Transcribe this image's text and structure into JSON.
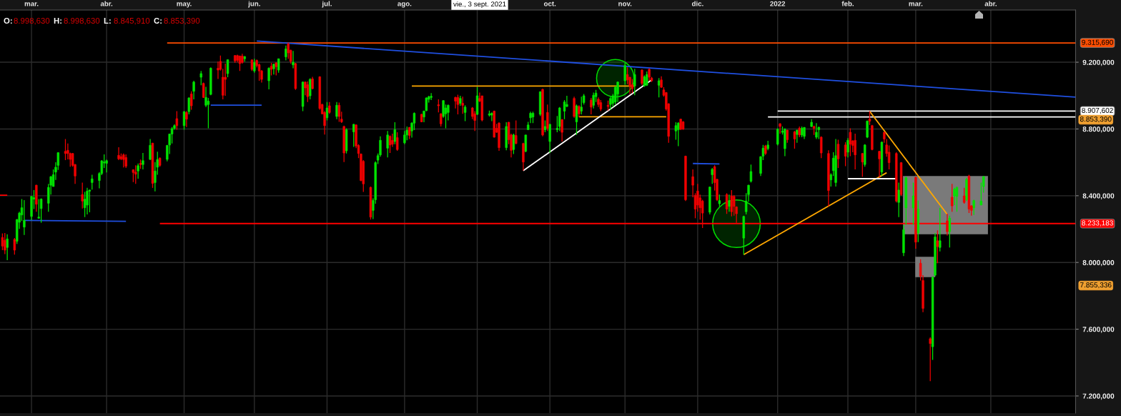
{
  "chart_data": {
    "type": "candlestick",
    "xlim": [
      "2021-02-16",
      "2022-05-06"
    ],
    "ylim": [
      7097,
      9513
    ],
    "xticks": [
      {
        "value": "2021-03-01",
        "label": "mar."
      },
      {
        "value": "2021-04-01",
        "label": "abr."
      },
      {
        "value": "2021-05-03",
        "label": "may."
      },
      {
        "value": "2021-06-01",
        "label": "jun."
      },
      {
        "value": "2021-07-01",
        "label": "jul."
      },
      {
        "value": "2021-08-02",
        "label": "ago."
      },
      {
        "value": "2021-09-01",
        "label": null
      },
      {
        "value": "2021-10-01",
        "label": "oct."
      },
      {
        "value": "2021-11-01",
        "label": "nov."
      },
      {
        "value": "2021-12-01",
        "label": "dic."
      },
      {
        "value": "2022-01-03",
        "label": "2022"
      },
      {
        "value": "2022-02-01",
        "label": "feb."
      },
      {
        "value": "2022-03-01",
        "label": "mar."
      },
      {
        "value": "2022-04-01",
        "label": "abr."
      }
    ],
    "yticks": [
      {
        "value": 7200,
        "label": "7.200,000"
      },
      {
        "value": 7600,
        "label": "7.600,000"
      },
      {
        "value": 8000,
        "label": "8.000,000"
      },
      {
        "value": 8400,
        "label": "8.400,000"
      },
      {
        "value": 8800,
        "label": "8.800,000"
      },
      {
        "value": 9200,
        "label": "9.200,000"
      }
    ],
    "grid": true,
    "annotations": [
      "O: 8.998,630",
      "H: 8.998,630",
      "L: 8.845,910",
      "C: 8.853,390",
      "vie., 3 sept. 2021",
      "8.853,390",
      "7.855,336"
    ],
    "series": [
      {
        "type": "bubble",
        "color": "#00dd00",
        "x": [
          "2021-10-28",
          "2021-12-17"
        ],
        "values": [
          9104,
          8232
        ],
        "sizes": [
          0.62,
          1
        ]
      },
      {
        "type": "line",
        "color": "#ff4d00",
        "x": [
          "2021-04-26",
          "2022-05-06"
        ],
        "values": [
          9315.69,
          9315.69
        ],
        "value_labels": [
          null,
          "9.315,690"
        ]
      },
      {
        "type": "line",
        "color": "#ff0000",
        "x": [
          "2021-04-23",
          "2022-05-06"
        ],
        "values": [
          8233.183,
          8233.183
        ],
        "value_labels": [
          null,
          "8.233,183"
        ]
      },
      {
        "type": "line",
        "color": "#ffffff",
        "x": [
          "2022-01-03",
          "2022-05-06"
        ],
        "values": [
          8907.602,
          8907.602
        ],
        "value_labels": [
          null,
          "8.907,602"
        ]
      },
      {
        "type": "line",
        "color": "#ffffff",
        "x": [
          "2021-12-30",
          "2022-05-06"
        ],
        "values": [
          8872,
          8872
        ]
      },
      {
        "type": "line",
        "color": "#1f4fe0",
        "x": [
          "2021-06-02",
          "2022-05-06"
        ],
        "values": [
          9327,
          8991
        ]
      },
      {
        "type": "line",
        "color": "#ffa800",
        "x": [
          "2021-08-05",
          "2021-11-05"
        ],
        "values": [
          9057,
          9057
        ]
      },
      {
        "type": "line",
        "color": "#ffa800",
        "x": [
          "2021-10-13",
          "2021-11-18"
        ],
        "values": [
          8873,
          8873
        ]
      },
      {
        "type": "line",
        "color": "#ffffff",
        "x": [
          "2021-09-20",
          "2021-11-12"
        ],
        "values": [
          8550,
          9094
        ]
      },
      {
        "type": "line",
        "color": "#1f4fe0",
        "x": [
          "2021-02-26",
          "2021-04-09"
        ],
        "values": [
          8252,
          8247
        ]
      },
      {
        "type": "line",
        "color": "#1f4fe0",
        "x": [
          "2021-05-14",
          "2021-06-04"
        ],
        "values": [
          8943,
          8943
        ]
      },
      {
        "type": "line",
        "color": "#1f4fe0",
        "x": [
          "2021-11-29",
          "2021-12-10"
        ],
        "values": [
          8593,
          8590
        ]
      },
      {
        "type": "line",
        "color": "#ffa800",
        "x": [
          "2021-12-20",
          "2022-02-17"
        ],
        "values": [
          8047,
          8538
        ]
      },
      {
        "type": "line",
        "color": "#ffffff",
        "x": [
          "2022-02-01",
          "2022-02-21"
        ],
        "values": [
          8502,
          8502
        ]
      },
      {
        "type": "line",
        "color": "#ffa800",
        "x": [
          "2022-02-10",
          "2022-03-14"
        ],
        "values": [
          8906,
          8288
        ]
      },
      {
        "type": "line",
        "color": "#ff0000",
        "x": [
          "2021-02-16",
          "2021-02-19"
        ],
        "values": [
          8403,
          8403
        ]
      },
      {
        "color": "#00e400",
        "x": [
          "2021-02-19",
          "2021-02-23",
          "2021-02-24",
          "2021-02-25",
          "2021-02-26",
          "2021-03-01",
          "2021-03-02",
          "2021-03-04",
          "2021-03-05",
          "2021-03-08",
          "2021-03-09",
          "2021-03-10",
          "2021-03-11",
          "2021-03-12",
          "2021-03-23",
          "2021-03-24",
          "2021-03-25",
          "2021-03-26",
          "2021-03-29",
          "2021-03-30",
          "2021-03-31",
          "2021-04-01",
          "2021-04-14",
          "2021-04-16",
          "2021-04-19",
          "2021-04-21",
          "2021-04-22",
          "2021-04-26",
          "2021-04-27",
          "2021-04-28",
          "2021-04-29",
          "2021-05-03",
          "2021-05-05",
          "2021-05-07",
          "2021-05-10",
          "2021-05-12",
          "2021-05-13",
          "2021-05-14",
          "2021-05-21",
          "2021-05-28",
          "2021-06-01",
          "2021-06-07",
          "2021-06-09",
          "2021-06-11",
          "2021-06-14",
          "2021-06-17",
          "2021-06-21",
          "2021-06-24",
          "2021-07-01",
          "2021-07-05",
          "2021-07-09",
          "2021-07-12",
          "2021-07-20",
          "2021-07-21",
          "2021-07-22",
          "2021-07-23",
          "2021-07-26",
          "2021-07-29",
          "2021-08-02",
          "2021-08-03",
          "2021-08-05",
          "2021-08-06",
          "2021-08-10",
          "2021-08-11",
          "2021-08-12",
          "2021-08-13",
          "2021-08-18",
          "2021-08-19",
          "2021-08-20",
          "2021-08-25",
          "2021-08-27",
          "2021-09-01",
          "2021-09-06",
          "2021-09-07",
          "2021-09-13",
          "2021-09-16",
          "2021-09-21",
          "2021-09-22",
          "2021-09-23",
          "2021-09-24",
          "2021-09-27",
          "2021-09-29",
          "2021-10-01",
          "2021-10-04",
          "2021-10-05",
          "2021-10-07",
          "2021-10-08",
          "2021-10-12",
          "2021-10-14",
          "2021-10-15",
          "2021-10-19",
          "2021-10-20",
          "2021-10-26",
          "2021-10-27",
          "2021-10-28",
          "2021-10-29",
          "2021-11-01",
          "2021-11-05",
          "2021-11-09",
          "2021-11-10",
          "2021-11-15",
          "2021-11-22",
          "2021-11-23",
          "2021-12-06",
          "2021-12-07",
          "2021-12-10",
          "2021-12-14",
          "2021-12-20",
          "2021-12-21",
          "2021-12-22",
          "2021-12-23",
          "2021-12-27",
          "2021-12-28",
          "2021-12-30",
          "2022-01-03",
          "2022-01-05",
          "2022-01-06",
          "2022-01-11",
          "2022-01-13",
          "2022-01-14",
          "2022-01-17",
          "2022-01-19",
          "2022-01-20",
          "2022-01-25",
          "2022-01-26",
          "2022-01-27",
          "2022-02-01",
          "2022-02-08",
          "2022-02-09",
          "2022-02-15",
          "2022-02-22",
          "2022-02-24",
          "2022-02-25",
          "2022-02-28",
          "2022-03-02",
          "2022-03-08",
          "2022-03-09",
          "2022-03-11",
          "2022-03-15",
          "2022-03-17",
          "2022-03-18",
          "2022-03-22",
          "2022-03-25",
          "2022-03-28",
          "2022-03-29"
        ],
        "ohlc": [
          [
            8090,
            8169,
            8014,
            8141
          ],
          [
            8127,
            8260,
            8111,
            8257
          ],
          [
            8241,
            8304,
            8201,
            8296
          ],
          [
            8285,
            8380,
            8249,
            8328
          ],
          [
            8212,
            8374,
            8165,
            8252
          ],
          [
            8276,
            8399,
            8253,
            8396
          ],
          [
            8380,
            8434,
            8320,
            8388
          ],
          [
            8265,
            8380,
            8263,
            8272
          ],
          [
            8323,
            8384,
            8238,
            8380
          ],
          [
            8355,
            8471,
            8304,
            8450
          ],
          [
            8463,
            8518,
            8407,
            8514
          ],
          [
            8455,
            8558,
            8455,
            8526
          ],
          [
            8542,
            8601,
            8495,
            8571
          ],
          [
            8582,
            8661,
            8555,
            8658
          ],
          [
            8328,
            8423,
            8272,
            8379
          ],
          [
            8344,
            8447,
            8288,
            8428
          ],
          [
            8427,
            8436,
            8301,
            8434
          ],
          [
            8479,
            8526,
            8437,
            8501
          ],
          [
            8491,
            8542,
            8444,
            8533
          ],
          [
            8533,
            8613,
            8523,
            8609
          ],
          [
            8596,
            8648,
            8566,
            8602
          ],
          [
            8594,
            8617,
            8539,
            8610
          ],
          [
            8548,
            8593,
            8502,
            8580
          ],
          [
            8587,
            8656,
            8558,
            8610
          ],
          [
            8618,
            8740,
            8613,
            8702
          ],
          [
            8479,
            8602,
            8426,
            8548
          ],
          [
            8571,
            8664,
            8526,
            8617
          ],
          [
            8618,
            8704,
            8606,
            8701
          ],
          [
            8704,
            8772,
            8650,
            8770
          ],
          [
            8770,
            8812,
            8713,
            8802
          ],
          [
            8804,
            8828,
            8796,
            8820
          ],
          [
            8820,
            8907,
            8796,
            8904
          ],
          [
            8904,
            8989,
            8888,
            8986
          ],
          [
            9026,
            9089,
            8978,
            9081
          ],
          [
            9110,
            9148,
            9062,
            9132
          ],
          [
            8942,
            9053,
            8931,
            8989
          ],
          [
            8947,
            8986,
            8804,
            8967
          ],
          [
            9007,
            9169,
            9002,
            9164
          ],
          [
            9132,
            9216,
            9110,
            9215
          ],
          [
            9221,
            9237,
            9203,
            9234
          ],
          [
            9148,
            9221,
            9137,
            9199
          ],
          [
            9089,
            9169,
            9037,
            9164
          ],
          [
            9161,
            9192,
            9126,
            9188
          ],
          [
            9153,
            9221,
            9137,
            9221
          ],
          [
            9232,
            9300,
            9211,
            9280
          ],
          [
            9184,
            9268,
            9164,
            9200
          ],
          [
            8935,
            9085,
            8907,
            9081
          ],
          [
            8999,
            9104,
            8978,
            9097
          ],
          [
            8867,
            8962,
            8851,
            8926
          ],
          [
            8875,
            8962,
            8859,
            8942
          ],
          [
            8669,
            8804,
            8653,
            8796
          ],
          [
            8783,
            8831,
            8693,
            8828
          ],
          [
            8312,
            8384,
            8260,
            8372
          ],
          [
            8376,
            8606,
            8352,
            8598
          ],
          [
            8613,
            8653,
            8590,
            8640
          ],
          [
            8645,
            8756,
            8634,
            8732
          ],
          [
            8685,
            8788,
            8629,
            8764
          ],
          [
            8725,
            8840,
            8709,
            8796
          ],
          [
            8717,
            8788,
            8709,
            8764
          ],
          [
            8764,
            8815,
            8732,
            8793
          ],
          [
            8788,
            8840,
            8748,
            8835
          ],
          [
            8835,
            8899,
            8793,
            8894
          ],
          [
            8872,
            8910,
            8840,
            8907
          ],
          [
            8910,
            8989,
            8907,
            8986
          ],
          [
            8978,
            8999,
            8958,
            8993
          ],
          [
            8989,
            9015,
            8973,
            8996
          ],
          [
            8875,
            8973,
            8867,
            8970
          ],
          [
            8891,
            8947,
            8804,
            8926
          ],
          [
            8899,
            8947,
            8851,
            8942
          ],
          [
            8954,
            8999,
            8939,
            8983
          ],
          [
            8899,
            8942,
            8847,
            8931
          ],
          [
            8888,
            9053,
            8883,
            8999
          ],
          [
            8883,
            8910,
            8875,
            8891
          ],
          [
            8883,
            8899,
            8847,
            8894
          ],
          [
            8688,
            8840,
            8672,
            8815
          ],
          [
            8677,
            8772,
            8650,
            8764
          ],
          [
            8666,
            8764,
            8661,
            8764
          ],
          [
            8796,
            8843,
            8793,
            8824
          ],
          [
            8867,
            8904,
            8835,
            8894
          ],
          [
            8872,
            8904,
            8835,
            8894
          ],
          [
            8888,
            9026,
            8878,
            9023
          ],
          [
            8796,
            8851,
            8780,
            8815
          ],
          [
            8725,
            8831,
            8656,
            8828
          ],
          [
            8796,
            8878,
            8780,
            8804
          ],
          [
            8815,
            8931,
            8788,
            8926
          ],
          [
            8907,
            8973,
            8859,
            8962
          ],
          [
            8935,
            8999,
            8931,
            8947
          ],
          [
            8843,
            8947,
            8764,
            8939
          ],
          [
            8907,
            8994,
            8888,
            8931
          ],
          [
            8958,
            9010,
            8947,
            8999
          ],
          [
            8942,
            9018,
            8923,
            9002
          ],
          [
            8994,
            9034,
            8962,
            9015
          ],
          [
            8947,
            8994,
            8915,
            8983
          ],
          [
            8954,
            9010,
            8931,
            8999
          ],
          [
            8962,
            9058,
            8947,
            9050
          ],
          [
            9010,
            9085,
            8962,
            9081
          ],
          [
            9089,
            9196,
            9065,
            9180
          ],
          [
            9058,
            9161,
            9002,
            9126
          ],
          [
            9058,
            9121,
            9053,
            9113
          ],
          [
            9062,
            9145,
            9058,
            9126
          ],
          [
            9062,
            9105,
            8989,
            9089
          ],
          [
            8788,
            8840,
            8736,
            8820
          ],
          [
            8796,
            8840,
            8697,
            8835
          ],
          [
            8301,
            8455,
            8288,
            8452
          ],
          [
            8526,
            8566,
            8471,
            8558
          ],
          [
            8352,
            8407,
            8336,
            8371
          ],
          [
            8336,
            8407,
            8304,
            8371
          ],
          [
            8146,
            8280,
            8047,
            8276
          ],
          [
            8304,
            8415,
            8288,
            8368
          ],
          [
            8407,
            8466,
            8364,
            8463
          ],
          [
            8487,
            8587,
            8479,
            8545
          ],
          [
            8534,
            8637,
            8518,
            8634
          ],
          [
            8637,
            8704,
            8613,
            8685
          ],
          [
            8682,
            8729,
            8672,
            8704
          ],
          [
            8709,
            8804,
            8701,
            8799
          ],
          [
            8780,
            8815,
            8767,
            8788
          ],
          [
            8682,
            8804,
            8637,
            8799
          ],
          [
            8767,
            8796,
            8717,
            8793
          ],
          [
            8764,
            8815,
            8751,
            8804
          ],
          [
            8756,
            8812,
            8740,
            8809
          ],
          [
            8815,
            8859,
            8812,
            8840
          ],
          [
            8751,
            8835,
            8740,
            8780
          ],
          [
            8796,
            8815,
            8740,
            8809
          ],
          [
            8495,
            8534,
            8455,
            8526
          ],
          [
            8550,
            8661,
            8518,
            8625
          ],
          [
            8479,
            8740,
            8455,
            8640
          ],
          [
            8661,
            8745,
            8629,
            8732
          ],
          [
            8587,
            8709,
            8574,
            8704
          ],
          [
            8751,
            8851,
            8745,
            8847
          ],
          [
            8542,
            8725,
            8518,
            8721
          ],
          [
            8360,
            8479,
            8272,
            8434
          ],
          [
            8058,
            8225,
            8038,
            8196
          ],
          [
            8328,
            8514,
            8225,
            8507
          ],
          [
            8328,
            8479,
            8225,
            8399
          ],
          [
            8177,
            8371,
            8122,
            8320
          ],
          [
            7495,
            7916,
            7416,
            7911
          ],
          [
            7924,
            8177,
            7916,
            8153
          ],
          [
            8090,
            8328,
            8066,
            8130
          ],
          [
            8185,
            8280,
            8090,
            8265
          ],
          [
            8399,
            8447,
            8344,
            8439
          ],
          [
            8396,
            8455,
            8304,
            8450
          ],
          [
            8376,
            8507,
            8368,
            8498
          ],
          [
            8328,
            8376,
            8285,
            8371
          ],
          [
            8344,
            8479,
            8344,
            8368
          ],
          [
            8455,
            8518,
            8418,
            8514
          ]
        ]
      },
      {
        "color": "#f00000",
        "x": [
          "2021-02-17",
          "2021-02-18",
          "2021-02-22",
          "2021-03-03",
          "2021-03-15",
          "2021-03-16",
          "2021-03-17",
          "2021-03-18",
          "2021-03-19",
          "2021-03-22",
          "2021-04-06",
          "2021-04-07",
          "2021-04-08",
          "2021-04-09",
          "2021-04-12",
          "2021-04-13",
          "2021-04-15",
          "2021-04-20",
          "2021-04-23",
          "2021-04-30",
          "2021-05-04",
          "2021-05-06",
          "2021-05-11",
          "2021-05-17",
          "2021-05-18",
          "2021-05-19",
          "2021-05-20",
          "2021-05-24",
          "2021-05-25",
          "2021-05-26",
          "2021-05-27",
          "2021-05-31",
          "2021-06-02",
          "2021-06-03",
          "2021-06-04",
          "2021-06-08",
          "2021-06-10",
          "2021-06-15",
          "2021-06-16",
          "2021-06-18",
          "2021-06-22",
          "2021-06-23",
          "2021-06-25",
          "2021-06-28",
          "2021-06-29",
          "2021-06-30",
          "2021-07-02",
          "2021-07-06",
          "2021-07-07",
          "2021-07-08",
          "2021-07-13",
          "2021-07-14",
          "2021-07-15",
          "2021-07-16",
          "2021-07-19",
          "2021-07-27",
          "2021-07-28",
          "2021-07-30",
          "2021-08-04",
          "2021-08-09",
          "2021-08-16",
          "2021-08-17",
          "2021-08-23",
          "2021-08-24",
          "2021-08-26",
          "2021-08-30",
          "2021-08-31",
          "2021-09-02",
          "2021-09-03",
          "2021-09-08",
          "2021-09-09",
          "2021-09-10",
          "2021-09-14",
          "2021-09-15",
          "2021-09-17",
          "2021-09-20",
          "2021-09-28",
          "2021-09-30",
          "2021-10-06",
          "2021-10-11",
          "2021-10-13",
          "2021-10-18",
          "2021-10-21",
          "2021-10-22",
          "2021-10-25",
          "2021-11-02",
          "2021-11-03",
          "2021-11-04",
          "2021-11-08",
          "2021-11-11",
          "2021-11-12",
          "2021-11-16",
          "2021-11-17",
          "2021-11-18",
          "2021-11-19",
          "2021-11-24",
          "2021-11-25",
          "2021-11-26",
          "2021-11-29",
          "2021-11-30",
          "2021-12-01",
          "2021-12-02",
          "2021-12-03",
          "2021-12-08",
          "2021-12-09",
          "2021-12-13",
          "2021-12-15",
          "2021-12-16",
          "2021-12-17",
          "2021-12-29",
          "2022-01-04",
          "2022-01-07",
          "2022-01-10",
          "2022-01-12",
          "2022-01-18",
          "2022-01-21",
          "2022-01-24",
          "2022-01-28",
          "2022-01-31",
          "2022-02-02",
          "2022-02-03",
          "2022-02-04",
          "2022-02-07",
          "2022-02-10",
          "2022-02-11",
          "2022-02-14",
          "2022-02-16",
          "2022-02-17",
          "2022-02-18",
          "2022-02-21",
          "2022-02-23",
          "2022-03-01",
          "2022-03-03",
          "2022-03-04",
          "2022-03-07",
          "2022-03-10",
          "2022-03-14",
          "2022-03-16",
          "2022-03-21",
          "2022-03-23",
          "2022-03-24"
        ],
        "ohlc": [
          [
            8150,
            8174,
            8074,
            8098
          ],
          [
            8133,
            8177,
            8050,
            8074
          ],
          [
            8138,
            8146,
            8047,
            8074
          ],
          [
            8463,
            8466,
            8304,
            8349
          ],
          [
            8666,
            8740,
            8613,
            8653
          ],
          [
            8672,
            8713,
            8618,
            8653
          ],
          [
            8653,
            8658,
            8574,
            8618
          ],
          [
            8653,
            8656,
            8574,
            8582
          ],
          [
            8587,
            8590,
            8471,
            8518
          ],
          [
            8407,
            8479,
            8323,
            8368
          ],
          [
            8642,
            8690,
            8613,
            8621
          ],
          [
            8634,
            8653,
            8613,
            8621
          ],
          [
            8645,
            8653,
            8569,
            8617
          ],
          [
            8629,
            8648,
            8566,
            8577
          ],
          [
            8556,
            8558,
            8482,
            8539
          ],
          [
            8542,
            8582,
            8471,
            8529
          ],
          [
            8594,
            8617,
            8561,
            8587
          ],
          [
            8715,
            8717,
            8447,
            8474
          ],
          [
            8625,
            8629,
            8574,
            8582
          ],
          [
            8862,
            8907,
            8796,
            8820
          ],
          [
            8899,
            8907,
            8812,
            8859
          ],
          [
            9010,
            9026,
            8915,
            8939
          ],
          [
            9073,
            9078,
            8986,
            8989
          ],
          [
            9164,
            9205,
            9100,
            9153
          ],
          [
            9205,
            9240,
            9150,
            9157
          ],
          [
            9110,
            9161,
            8978,
            9002
          ],
          [
            9110,
            9192,
            8999,
            9097
          ],
          [
            9240,
            9243,
            9196,
            9208
          ],
          [
            9240,
            9245,
            9199,
            9211
          ],
          [
            9237,
            9240,
            9148,
            9192
          ],
          [
            9237,
            9251,
            9192,
            9199
          ],
          [
            9214,
            9216,
            9148,
            9157
          ],
          [
            9211,
            9216,
            9169,
            9180
          ],
          [
            9185,
            9192,
            9089,
            9148
          ],
          [
            9148,
            9153,
            9078,
            9097
          ],
          [
            9176,
            9196,
            9121,
            9157
          ],
          [
            9196,
            9200,
            9121,
            9173
          ],
          [
            9311,
            9316,
            9221,
            9256
          ],
          [
            9272,
            9275,
            9192,
            9205
          ],
          [
            9192,
            9196,
            9034,
            9042
          ],
          [
            9081,
            9085,
            9002,
            9046
          ],
          [
            9065,
            9085,
            8962,
            8994
          ],
          [
            9100,
            9113,
            9037,
            9042
          ],
          [
            9113,
            9116,
            8915,
            8923
          ],
          [
            8947,
            8951,
            8888,
            8891
          ],
          [
            8899,
            8907,
            8767,
            8820
          ],
          [
            8939,
            8962,
            8891,
            8899
          ],
          [
            8942,
            8958,
            8843,
            8875
          ],
          [
            8859,
            8904,
            8836,
            8843
          ],
          [
            8815,
            8820,
            8602,
            8656
          ],
          [
            8824,
            8828,
            8685,
            8698
          ],
          [
            8701,
            8709,
            8625,
            8653
          ],
          [
            8650,
            8653,
            8487,
            8491
          ],
          [
            8606,
            8613,
            8423,
            8471
          ],
          [
            8450,
            8455,
            8257,
            8272
          ],
          [
            8756,
            8761,
            8656,
            8704
          ],
          [
            8732,
            8772,
            8693,
            8709
          ],
          [
            8748,
            8780,
            8669,
            8677
          ],
          [
            8809,
            8812,
            8740,
            8761
          ],
          [
            8888,
            8891,
            8840,
            8843
          ],
          [
            8945,
            8978,
            8899,
            8939
          ],
          [
            8891,
            8894,
            8815,
            8831
          ],
          [
            8989,
            8994,
            8923,
            8967
          ],
          [
            8989,
            9005,
            8888,
            8947
          ],
          [
            8954,
            8994,
            8891,
            8942
          ],
          [
            8926,
            8931,
            8859,
            8875
          ],
          [
            8891,
            8907,
            8788,
            8851
          ],
          [
            8983,
            9018,
            8962,
            8967
          ],
          [
            8998.63,
            8998.63,
            8845.91,
            8853.39
          ],
          [
            8907,
            8910,
            8748,
            8751
          ],
          [
            8804,
            8831,
            8777,
            8780
          ],
          [
            8835,
            8840,
            8669,
            8688
          ],
          [
            8840,
            8843,
            8709,
            8736
          ],
          [
            8764,
            8772,
            8629,
            8672
          ],
          [
            8761,
            8851,
            8709,
            8713
          ],
          [
            8713,
            8717,
            8550,
            8602
          ],
          [
            9037,
            9042,
            8756,
            8764
          ],
          [
            8899,
            8947,
            8788,
            8804
          ],
          [
            8856,
            8859,
            8725,
            8780
          ],
          [
            8983,
            8994,
            8867,
            8875
          ],
          [
            8935,
            8942,
            8872,
            8891
          ],
          [
            8973,
            8986,
            8888,
            8931
          ],
          [
            8978,
            8989,
            8931,
            8947
          ],
          [
            8958,
            8973,
            8907,
            8920
          ],
          [
            8942,
            8970,
            8910,
            8935
          ],
          [
            9126,
            9169,
            9069,
            9094
          ],
          [
            9110,
            9113,
            9010,
            9058
          ],
          [
            9065,
            9100,
            9015,
            9042
          ],
          [
            9153,
            9157,
            9062,
            9073
          ],
          [
            9157,
            9164,
            9089,
            9110
          ],
          [
            9105,
            9113,
            9081,
            9089
          ],
          [
            9094,
            9116,
            9046,
            9050
          ],
          [
            9034,
            9050,
            8994,
            9002
          ],
          [
            9018,
            9021,
            8910,
            8920
          ],
          [
            8951,
            8954,
            8717,
            8756
          ],
          [
            8859,
            8862,
            8793,
            8799
          ],
          [
            8843,
            8847,
            8796,
            8799
          ],
          [
            8637,
            8640,
            8368,
            8376
          ],
          [
            8514,
            8558,
            8391,
            8463
          ],
          [
            8402,
            8415,
            8265,
            8320
          ],
          [
            8428,
            8471,
            8304,
            8344
          ],
          [
            8387,
            8407,
            8257,
            8328
          ],
          [
            8368,
            8376,
            8206,
            8296
          ],
          [
            8574,
            8582,
            8431,
            8479
          ],
          [
            8498,
            8502,
            8368,
            8376
          ],
          [
            8407,
            8415,
            8291,
            8320
          ],
          [
            8399,
            8434,
            8276,
            8304
          ],
          [
            8396,
            8403,
            8280,
            8336
          ],
          [
            8333,
            8336,
            8238,
            8292
          ],
          [
            8698,
            8704,
            8645,
            8653
          ],
          [
            8831,
            8835,
            8772,
            8815
          ],
          [
            8793,
            8796,
            8717,
            8736
          ],
          [
            8783,
            8788,
            8682,
            8740
          ],
          [
            8804,
            8815,
            8751,
            8764
          ],
          [
            8815,
            8820,
            8764,
            8804
          ],
          [
            8751,
            8756,
            8625,
            8656
          ],
          [
            8653,
            8672,
            8336,
            8431
          ],
          [
            8709,
            8736,
            8566,
            8621
          ],
          [
            8704,
            8720,
            8577,
            8637
          ],
          [
            8780,
            8804,
            8637,
            8709
          ],
          [
            8729,
            8732,
            8661,
            8701
          ],
          [
            8732,
            8772,
            8558,
            8645
          ],
          [
            8653,
            8656,
            8514,
            8602
          ],
          [
            8859,
            8907,
            8824,
            8847
          ],
          [
            8820,
            8824,
            8672,
            8677
          ],
          [
            8666,
            8669,
            8510,
            8621
          ],
          [
            8780,
            8783,
            8717,
            8740
          ],
          [
            8704,
            8740,
            8634,
            8653
          ],
          [
            8661,
            8701,
            8558,
            8598
          ],
          [
            8653,
            8661,
            8360,
            8368
          ],
          [
            8598,
            8602,
            8399,
            8407
          ],
          [
            8510,
            8514,
            8082,
            8122
          ],
          [
            7995,
            8019,
            7892,
            7917
          ],
          [
            7892,
            7924,
            7702,
            7725
          ],
          [
            7543,
            7551,
            7289,
            7514
          ],
          [
            8130,
            8193,
            7995,
            8095
          ],
          [
            8249,
            8292,
            8161,
            8185
          ],
          [
            8391,
            8471,
            8304,
            8339
          ],
          [
            8399,
            8447,
            8352,
            8360
          ],
          [
            8518,
            8526,
            8296,
            8320
          ],
          [
            8339,
            8344,
            8280,
            8312
          ]
        ]
      }
    ]
  }
}
